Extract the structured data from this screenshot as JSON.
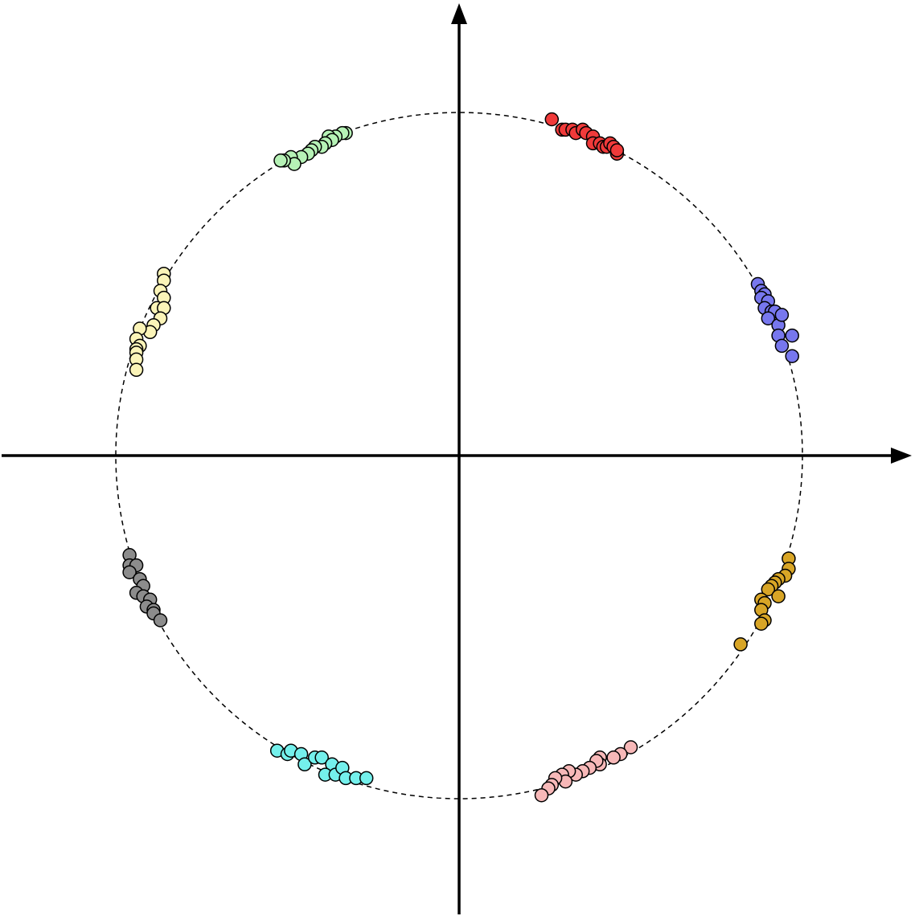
{
  "chart_data": {
    "type": "scatter",
    "title": "",
    "xlabel": "",
    "ylabel": "",
    "xlim": [
      -1.33,
      1.33
    ],
    "ylim": [
      -1.33,
      1.33
    ],
    "grid": false,
    "unit_circle": {
      "radius": 1,
      "style": "dashed"
    },
    "series": [
      {
        "color": "#f03a3a",
        "points": [
          [
            0.27,
            0.98
          ],
          [
            0.3,
            0.95
          ],
          [
            0.31,
            0.95
          ],
          [
            0.33,
            0.95
          ],
          [
            0.34,
            0.94
          ],
          [
            0.36,
            0.95
          ],
          [
            0.37,
            0.94
          ],
          [
            0.39,
            0.93
          ],
          [
            0.39,
            0.91
          ],
          [
            0.41,
            0.91
          ],
          [
            0.42,
            0.9
          ],
          [
            0.43,
            0.9
          ],
          [
            0.44,
            0.91
          ],
          [
            0.45,
            0.9
          ],
          [
            0.46,
            0.88
          ],
          [
            0.46,
            0.89
          ]
        ]
      },
      {
        "color": "#7777ee",
        "points": [
          [
            0.87,
            0.5
          ],
          [
            0.88,
            0.48
          ],
          [
            0.89,
            0.47
          ],
          [
            0.88,
            0.46
          ],
          [
            0.9,
            0.45
          ],
          [
            0.89,
            0.43
          ],
          [
            0.91,
            0.42
          ],
          [
            0.92,
            0.42
          ],
          [
            0.9,
            0.4
          ],
          [
            0.93,
            0.38
          ],
          [
            0.94,
            0.41
          ],
          [
            0.93,
            0.35
          ],
          [
            0.97,
            0.35
          ],
          [
            0.94,
            0.32
          ],
          [
            0.97,
            0.29
          ]
        ]
      },
      {
        "color": "#d8a526",
        "points": [
          [
            0.96,
            -0.3
          ],
          [
            0.96,
            -0.33
          ],
          [
            0.95,
            -0.35
          ],
          [
            0.93,
            -0.36
          ],
          [
            0.92,
            -0.37
          ],
          [
            0.91,
            -0.38
          ],
          [
            0.9,
            -0.39
          ],
          [
            0.93,
            -0.41
          ],
          [
            0.88,
            -0.42
          ],
          [
            0.89,
            -0.43
          ],
          [
            0.88,
            -0.45
          ],
          [
            0.89,
            -0.48
          ],
          [
            0.88,
            -0.49
          ],
          [
            0.82,
            -0.55
          ]
        ]
      },
      {
        "color": "#f7b8b8",
        "points": [
          [
            0.5,
            -0.85
          ],
          [
            0.47,
            -0.87
          ],
          [
            0.45,
            -0.88
          ],
          [
            0.41,
            -0.88
          ],
          [
            0.41,
            -0.9
          ],
          [
            0.4,
            -0.89
          ],
          [
            0.38,
            -0.91
          ],
          [
            0.36,
            -0.92
          ],
          [
            0.34,
            -0.93
          ],
          [
            0.32,
            -0.92
          ],
          [
            0.3,
            -0.93
          ],
          [
            0.31,
            -0.95
          ],
          [
            0.28,
            -0.94
          ],
          [
            0.27,
            -0.96
          ],
          [
            0.26,
            -0.97
          ],
          [
            0.24,
            -0.99
          ]
        ]
      },
      {
        "color": "#74f0ec",
        "points": [
          [
            -0.53,
            -0.86
          ],
          [
            -0.5,
            -0.87
          ],
          [
            -0.49,
            -0.86
          ],
          [
            -0.46,
            -0.87
          ],
          [
            -0.45,
            -0.9
          ],
          [
            -0.42,
            -0.88
          ],
          [
            -0.4,
            -0.88
          ],
          [
            -0.37,
            -0.9
          ],
          [
            -0.39,
            -0.93
          ],
          [
            -0.36,
            -0.93
          ],
          [
            -0.34,
            -0.91
          ],
          [
            -0.33,
            -0.94
          ],
          [
            -0.3,
            -0.94
          ],
          [
            -0.27,
            -0.94
          ]
        ]
      },
      {
        "color": "#8c8c8c",
        "points": [
          [
            -0.96,
            -0.29
          ],
          [
            -0.96,
            -0.32
          ],
          [
            -0.94,
            -0.32
          ],
          [
            -0.96,
            -0.34
          ],
          [
            -0.93,
            -0.36
          ],
          [
            -0.92,
            -0.38
          ],
          [
            -0.94,
            -0.4
          ],
          [
            -0.92,
            -0.41
          ],
          [
            -0.9,
            -0.42
          ],
          [
            -0.91,
            -0.44
          ],
          [
            -0.89,
            -0.45
          ],
          [
            -0.89,
            -0.46
          ],
          [
            -0.87,
            -0.48
          ]
        ]
      },
      {
        "color": "#fbf4b8",
        "points": [
          [
            -0.86,
            0.53
          ],
          [
            -0.86,
            0.51
          ],
          [
            -0.87,
            0.48
          ],
          [
            -0.86,
            0.46
          ],
          [
            -0.88,
            0.43
          ],
          [
            -0.86,
            0.43
          ],
          [
            -0.87,
            0.4
          ],
          [
            -0.89,
            0.38
          ],
          [
            -0.9,
            0.36
          ],
          [
            -0.93,
            0.37
          ],
          [
            -0.94,
            0.34
          ],
          [
            -0.93,
            0.32
          ],
          [
            -0.94,
            0.31
          ],
          [
            -0.94,
            0.3
          ],
          [
            -0.94,
            0.28
          ],
          [
            -0.94,
            0.25
          ]
        ]
      },
      {
        "color": "#b6f2b6",
        "points": [
          [
            -0.33,
            0.94
          ],
          [
            -0.34,
            0.94
          ],
          [
            -0.36,
            0.93
          ],
          [
            -0.38,
            0.93
          ],
          [
            -0.37,
            0.92
          ],
          [
            -0.39,
            0.91
          ],
          [
            -0.39,
            0.91
          ],
          [
            -0.4,
            0.9
          ],
          [
            -0.42,
            0.9
          ],
          [
            -0.43,
            0.89
          ],
          [
            -0.44,
            0.88
          ],
          [
            -0.46,
            0.87
          ],
          [
            -0.49,
            0.87
          ],
          [
            -0.48,
            0.85
          ],
          [
            -0.51,
            0.86
          ],
          [
            -0.52,
            0.86
          ]
        ]
      }
    ]
  }
}
